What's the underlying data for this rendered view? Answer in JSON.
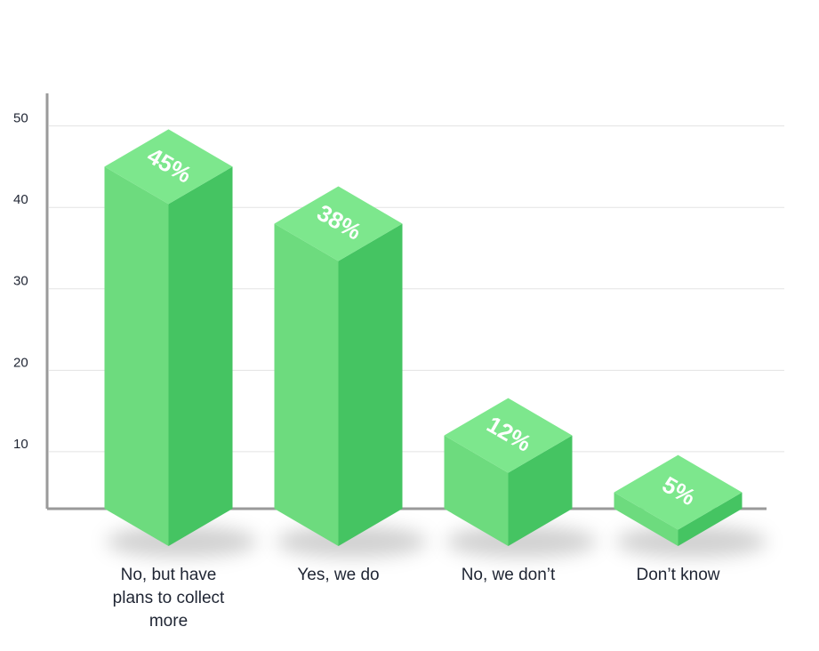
{
  "chart_data": {
    "type": "bar3d",
    "categories": [
      "No, but have plans to collect more",
      "Yes, we do",
      "No, we don’t",
      "Don’t know"
    ],
    "values": [
      45,
      38,
      12,
      5
    ],
    "value_labels": [
      "45%",
      "38%",
      "12%",
      "5%"
    ],
    "color": "#6ddb7e",
    "ylim": [
      3,
      54
    ],
    "yticks": [
      10,
      20,
      30,
      40,
      50
    ],
    "grid": true
  }
}
